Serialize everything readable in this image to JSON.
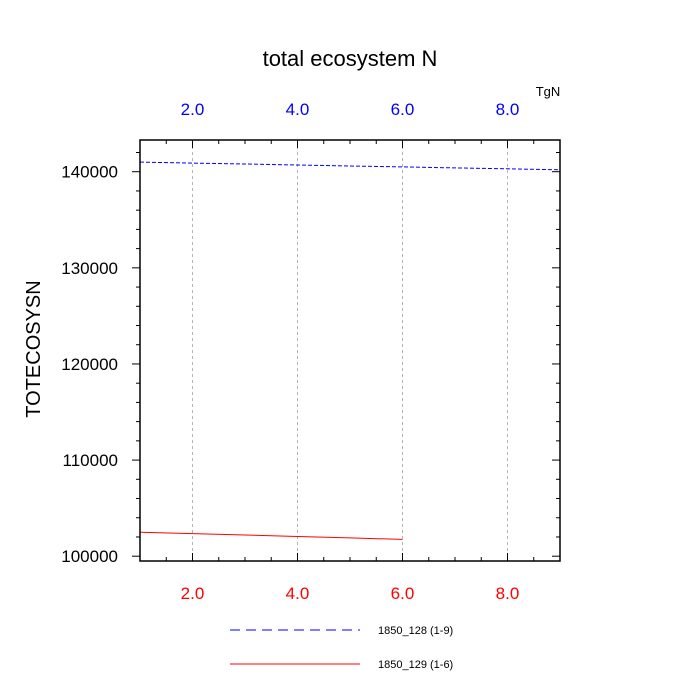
{
  "chart_data": {
    "type": "line",
    "title": "total ecosystem N",
    "ylabel": "TOTECOSYSN",
    "units": "TgN",
    "xlim": [
      1,
      9
    ],
    "ylim": [
      99500,
      143300
    ],
    "x_ticks": [
      "2.0",
      "4.0",
      "6.0",
      "8.0"
    ],
    "y_ticks": [
      "100000",
      "110000",
      "120000",
      "130000",
      "140000"
    ],
    "grid": "vertical dashed at major x ticks",
    "series": [
      {
        "name": "1850_128 (1-9)",
        "color": "#0000ff",
        "dash": "dashed",
        "x": [
          1,
          2,
          3,
          4,
          5,
          6,
          7,
          8,
          9
        ],
        "y": [
          141000,
          140900,
          140800,
          140700,
          140600,
          140500,
          140400,
          140300,
          140200
        ]
      },
      {
        "name": "1850_129 (1-6)",
        "color": "#ff0000",
        "dash": "solid",
        "x": [
          1,
          2,
          3,
          4,
          5,
          6
        ],
        "y": [
          102500,
          102350,
          102200,
          102050,
          101900,
          101750
        ]
      }
    ]
  },
  "colors": {
    "bottom_ticks": "#ff0000",
    "top_ticks": "#0000ff",
    "grid": "#b4b4b4"
  }
}
